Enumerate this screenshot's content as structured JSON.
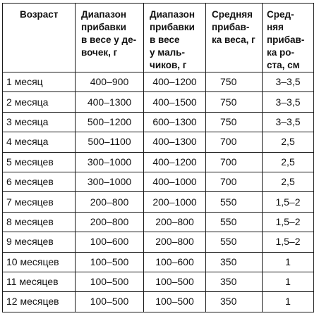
{
  "table": {
    "headers": [
      {
        "lines": [
          "Возраст"
        ]
      },
      {
        "lines": [
          "Диапазон",
          "прибавки",
          "в весе у де-",
          "вочек, г"
        ]
      },
      {
        "lines": [
          "Диапазон",
          "прибавки",
          "в весе",
          "у маль-",
          "чиков, г"
        ]
      },
      {
        "lines": [
          "Средняя",
          "прибав-",
          "ка веса, г"
        ]
      },
      {
        "lines": [
          "Сред-",
          "няя",
          "прибав-",
          "ка ро-",
          "ста, см"
        ]
      }
    ],
    "rows": [
      [
        "1 месяц",
        "400–900",
        "400–1200",
        "750",
        "3–3,5"
      ],
      [
        "2 месяца",
        "400–1300",
        "400–1500",
        "750",
        "3–3,5"
      ],
      [
        "3 месяца",
        "500–1200",
        "600–1300",
        "750",
        "3–3,5"
      ],
      [
        "4 месяца",
        "500–1100",
        "400–1300",
        "700",
        "2,5"
      ],
      [
        "5 месяцев",
        "300–1000",
        "400–1200",
        "700",
        "2,5"
      ],
      [
        "6 месяцев",
        "300–1000",
        "400–1000",
        "700",
        "2,5"
      ],
      [
        "7 месяцев",
        "200–800",
        "200–1000",
        "550",
        "1,5–2"
      ],
      [
        "8 месяцев",
        "200–800",
        "200–800",
        "550",
        "1,5–2"
      ],
      [
        "9 месяцев",
        "100–600",
        "200–800",
        "550",
        "1,5–2"
      ],
      [
        "10 месяцев",
        "100–500",
        "100–600",
        "350",
        "1"
      ],
      [
        "11 месяцев",
        "100–500",
        "100–500",
        "350",
        "1"
      ],
      [
        "12 месяцев",
        "100–500",
        "100–500",
        "350",
        "1"
      ]
    ]
  }
}
